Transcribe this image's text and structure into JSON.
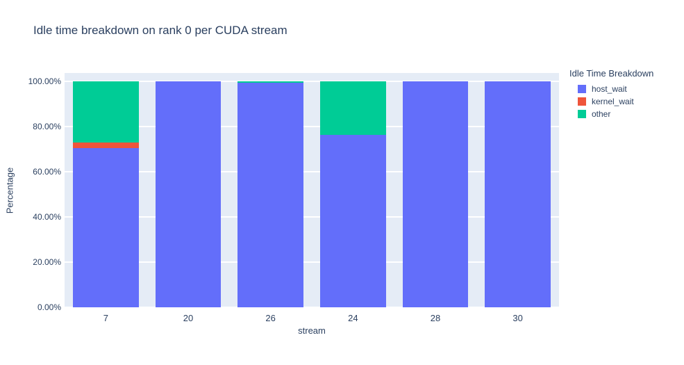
{
  "title": "Idle time breakdown on rank 0 per CUDA stream",
  "chart_data": {
    "type": "bar",
    "stacked": true,
    "orientation": "vertical",
    "title": "Idle time breakdown on rank 0 per CUDA stream",
    "categories": [
      "7",
      "20",
      "26",
      "24",
      "28",
      "30"
    ],
    "series": [
      {
        "name": "host_wait",
        "color": "#636EFA",
        "values": [
          70.5,
          100.0,
          99.4,
          76.2,
          100.0,
          100.0
        ]
      },
      {
        "name": "kernel_wait",
        "color": "#EF553B",
        "values": [
          2.3,
          0.0,
          0.0,
          0.0,
          0.0,
          0.0
        ]
      },
      {
        "name": "other",
        "color": "#00CC96",
        "values": [
          27.2,
          0.0,
          0.6,
          23.8,
          0.0,
          0.0
        ]
      }
    ],
    "xlabel": "stream",
    "ylabel": "Percentage",
    "ylim": [
      0,
      100
    ],
    "yticks": [
      0,
      20,
      40,
      60,
      80,
      100
    ],
    "ytick_labels": [
      "0.00%",
      "20.00%",
      "40.00%",
      "60.00%",
      "80.00%",
      "100.00%"
    ],
    "grid": true,
    "legend_title": "Idle Time Breakdown",
    "legend_position": "right",
    "colors": {
      "plot_background": "#E5ECF6",
      "paper_background": "#FFFFFF",
      "gridline": "#FFFFFF",
      "text": "#2a3f5f"
    }
  }
}
